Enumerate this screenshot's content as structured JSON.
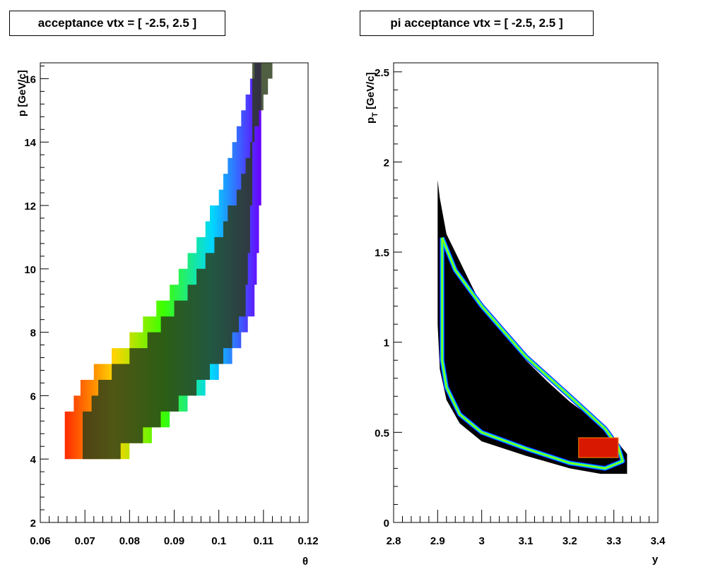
{
  "chart_data": [
    {
      "type": "heatmap",
      "title": "acceptance vtx = [ -2.5, 2.5 ]",
      "xlabel": "θ",
      "ylabel": "p [GeV/c]",
      "xlim": [
        0.06,
        0.12
      ],
      "ylim": [
        2,
        16.5
      ],
      "xticks": [
        0.06,
        0.07,
        0.08,
        0.09,
        0.1,
        0.11,
        0.12
      ],
      "xtick_labels": [
        "0.06",
        "0.07",
        "0.08",
        "0.09",
        "0.1",
        "0.11",
        "0.12"
      ],
      "yticks": [
        2,
        4,
        6,
        8,
        10,
        12,
        14,
        16
      ],
      "ytick_labels": [
        "2",
        "4",
        "6",
        "8",
        "10",
        "12",
        "14",
        "16"
      ],
      "region_boundary": {
        "left_edge": [
          [
            0.0655,
            4.0
          ],
          [
            0.0655,
            5.5
          ],
          [
            0.0675,
            5.5
          ],
          [
            0.0675,
            6.0
          ],
          [
            0.069,
            6.0
          ],
          [
            0.069,
            6.5
          ],
          [
            0.072,
            6.5
          ],
          [
            0.072,
            7.0
          ],
          [
            0.076,
            7.0
          ],
          [
            0.076,
            7.5
          ],
          [
            0.08,
            7.5
          ],
          [
            0.08,
            8.0
          ],
          [
            0.083,
            8.0
          ],
          [
            0.083,
            8.5
          ],
          [
            0.086,
            8.5
          ],
          [
            0.086,
            9.0
          ],
          [
            0.089,
            9.0
          ],
          [
            0.089,
            9.5
          ],
          [
            0.091,
            9.5
          ],
          [
            0.091,
            10.0
          ],
          [
            0.093,
            10.0
          ],
          [
            0.093,
            10.5
          ],
          [
            0.095,
            10.5
          ],
          [
            0.095,
            11.0
          ],
          [
            0.097,
            11.0
          ],
          [
            0.097,
            11.5
          ],
          [
            0.098,
            11.5
          ],
          [
            0.098,
            12.0
          ],
          [
            0.1,
            12.0
          ],
          [
            0.1,
            12.5
          ],
          [
            0.101,
            12.5
          ],
          [
            0.101,
            13.0
          ],
          [
            0.102,
            13.0
          ],
          [
            0.102,
            13.5
          ],
          [
            0.103,
            13.5
          ],
          [
            0.103,
            14.0
          ],
          [
            0.104,
            14.0
          ],
          [
            0.104,
            14.5
          ],
          [
            0.105,
            14.5
          ],
          [
            0.105,
            15.0
          ],
          [
            0.106,
            15.0
          ],
          [
            0.106,
            15.5
          ],
          [
            0.107,
            15.5
          ],
          [
            0.107,
            16.0
          ],
          [
            0.108,
            16.0
          ],
          [
            0.108,
            16.5
          ]
        ],
        "right_edge": [
          [
            0.1095,
            16.5
          ],
          [
            0.1095,
            12.0
          ],
          [
            0.109,
            12.0
          ],
          [
            0.109,
            10.5
          ],
          [
            0.1085,
            10.5
          ],
          [
            0.1085,
            9.5
          ],
          [
            0.108,
            9.5
          ],
          [
            0.108,
            8.5
          ],
          [
            0.1065,
            8.5
          ],
          [
            0.1065,
            8.0
          ],
          [
            0.105,
            8.0
          ],
          [
            0.105,
            7.5
          ],
          [
            0.103,
            7.5
          ],
          [
            0.103,
            7.0
          ],
          [
            0.1,
            7.0
          ],
          [
            0.1,
            6.5
          ],
          [
            0.097,
            6.5
          ],
          [
            0.097,
            6.0
          ],
          [
            0.093,
            6.0
          ],
          [
            0.093,
            5.5
          ],
          [
            0.089,
            5.5
          ],
          [
            0.089,
            5.0
          ],
          [
            0.085,
            5.0
          ],
          [
            0.085,
            4.5
          ],
          [
            0.08,
            4.5
          ],
          [
            0.08,
            4.0
          ]
        ]
      }
    },
    {
      "type": "heatmap",
      "title": "pi acceptance vtx = [ -2.5, 2.5 ]",
      "xlabel": "y",
      "ylabel": "p_T [GeV/c]",
      "xlim": [
        2.8,
        3.4
      ],
      "ylim": [
        0,
        2.55
      ],
      "xticks": [
        2.8,
        2.9,
        3.0,
        3.1,
        3.2,
        3.3,
        3.4
      ],
      "xtick_labels": [
        "2.8",
        "2.9",
        "3",
        "3.1",
        "3.2",
        "3.3",
        "3.4"
      ],
      "yticks": [
        0,
        0.5,
        1,
        1.5,
        2,
        2.5
      ],
      "ytick_labels": [
        "0",
        "0.5",
        "1",
        "1.5",
        "2",
        "2.5"
      ],
      "region_boundary": [
        [
          2.9,
          1.9
        ],
        [
          2.905,
          1.8
        ],
        [
          2.92,
          1.6
        ],
        [
          2.95,
          1.45
        ],
        [
          2.98,
          1.3
        ],
        [
          3.0,
          1.2
        ],
        [
          3.05,
          1.05
        ],
        [
          3.1,
          0.9
        ],
        [
          3.15,
          0.78
        ],
        [
          3.2,
          0.67
        ],
        [
          3.25,
          0.58
        ],
        [
          3.3,
          0.47
        ],
        [
          3.33,
          0.38
        ],
        [
          3.33,
          0.27
        ],
        [
          3.27,
          0.27
        ],
        [
          3.2,
          0.3
        ],
        [
          3.1,
          0.37
        ],
        [
          3.0,
          0.45
        ],
        [
          2.95,
          0.55
        ],
        [
          2.92,
          0.68
        ],
        [
          2.905,
          0.85
        ],
        [
          2.9,
          1.1
        ],
        [
          2.9,
          1.9
        ]
      ],
      "contour_ring": [
        [
          2.91,
          1.58
        ],
        [
          2.94,
          1.4
        ],
        [
          3.0,
          1.2
        ],
        [
          3.1,
          0.92
        ],
        [
          3.2,
          0.7
        ],
        [
          3.28,
          0.52
        ],
        [
          3.31,
          0.42
        ],
        [
          3.32,
          0.34
        ],
        [
          3.28,
          0.3
        ],
        [
          3.2,
          0.33
        ],
        [
          3.1,
          0.41
        ],
        [
          3.0,
          0.5
        ],
        [
          2.95,
          0.6
        ],
        [
          2.92,
          0.75
        ],
        [
          2.91,
          0.9
        ],
        [
          2.91,
          1.58
        ]
      ],
      "hotspot": [
        [
          3.22,
          0.36
        ],
        [
          3.31,
          0.36
        ],
        [
          3.31,
          0.47
        ],
        [
          3.22,
          0.47
        ]
      ]
    }
  ]
}
